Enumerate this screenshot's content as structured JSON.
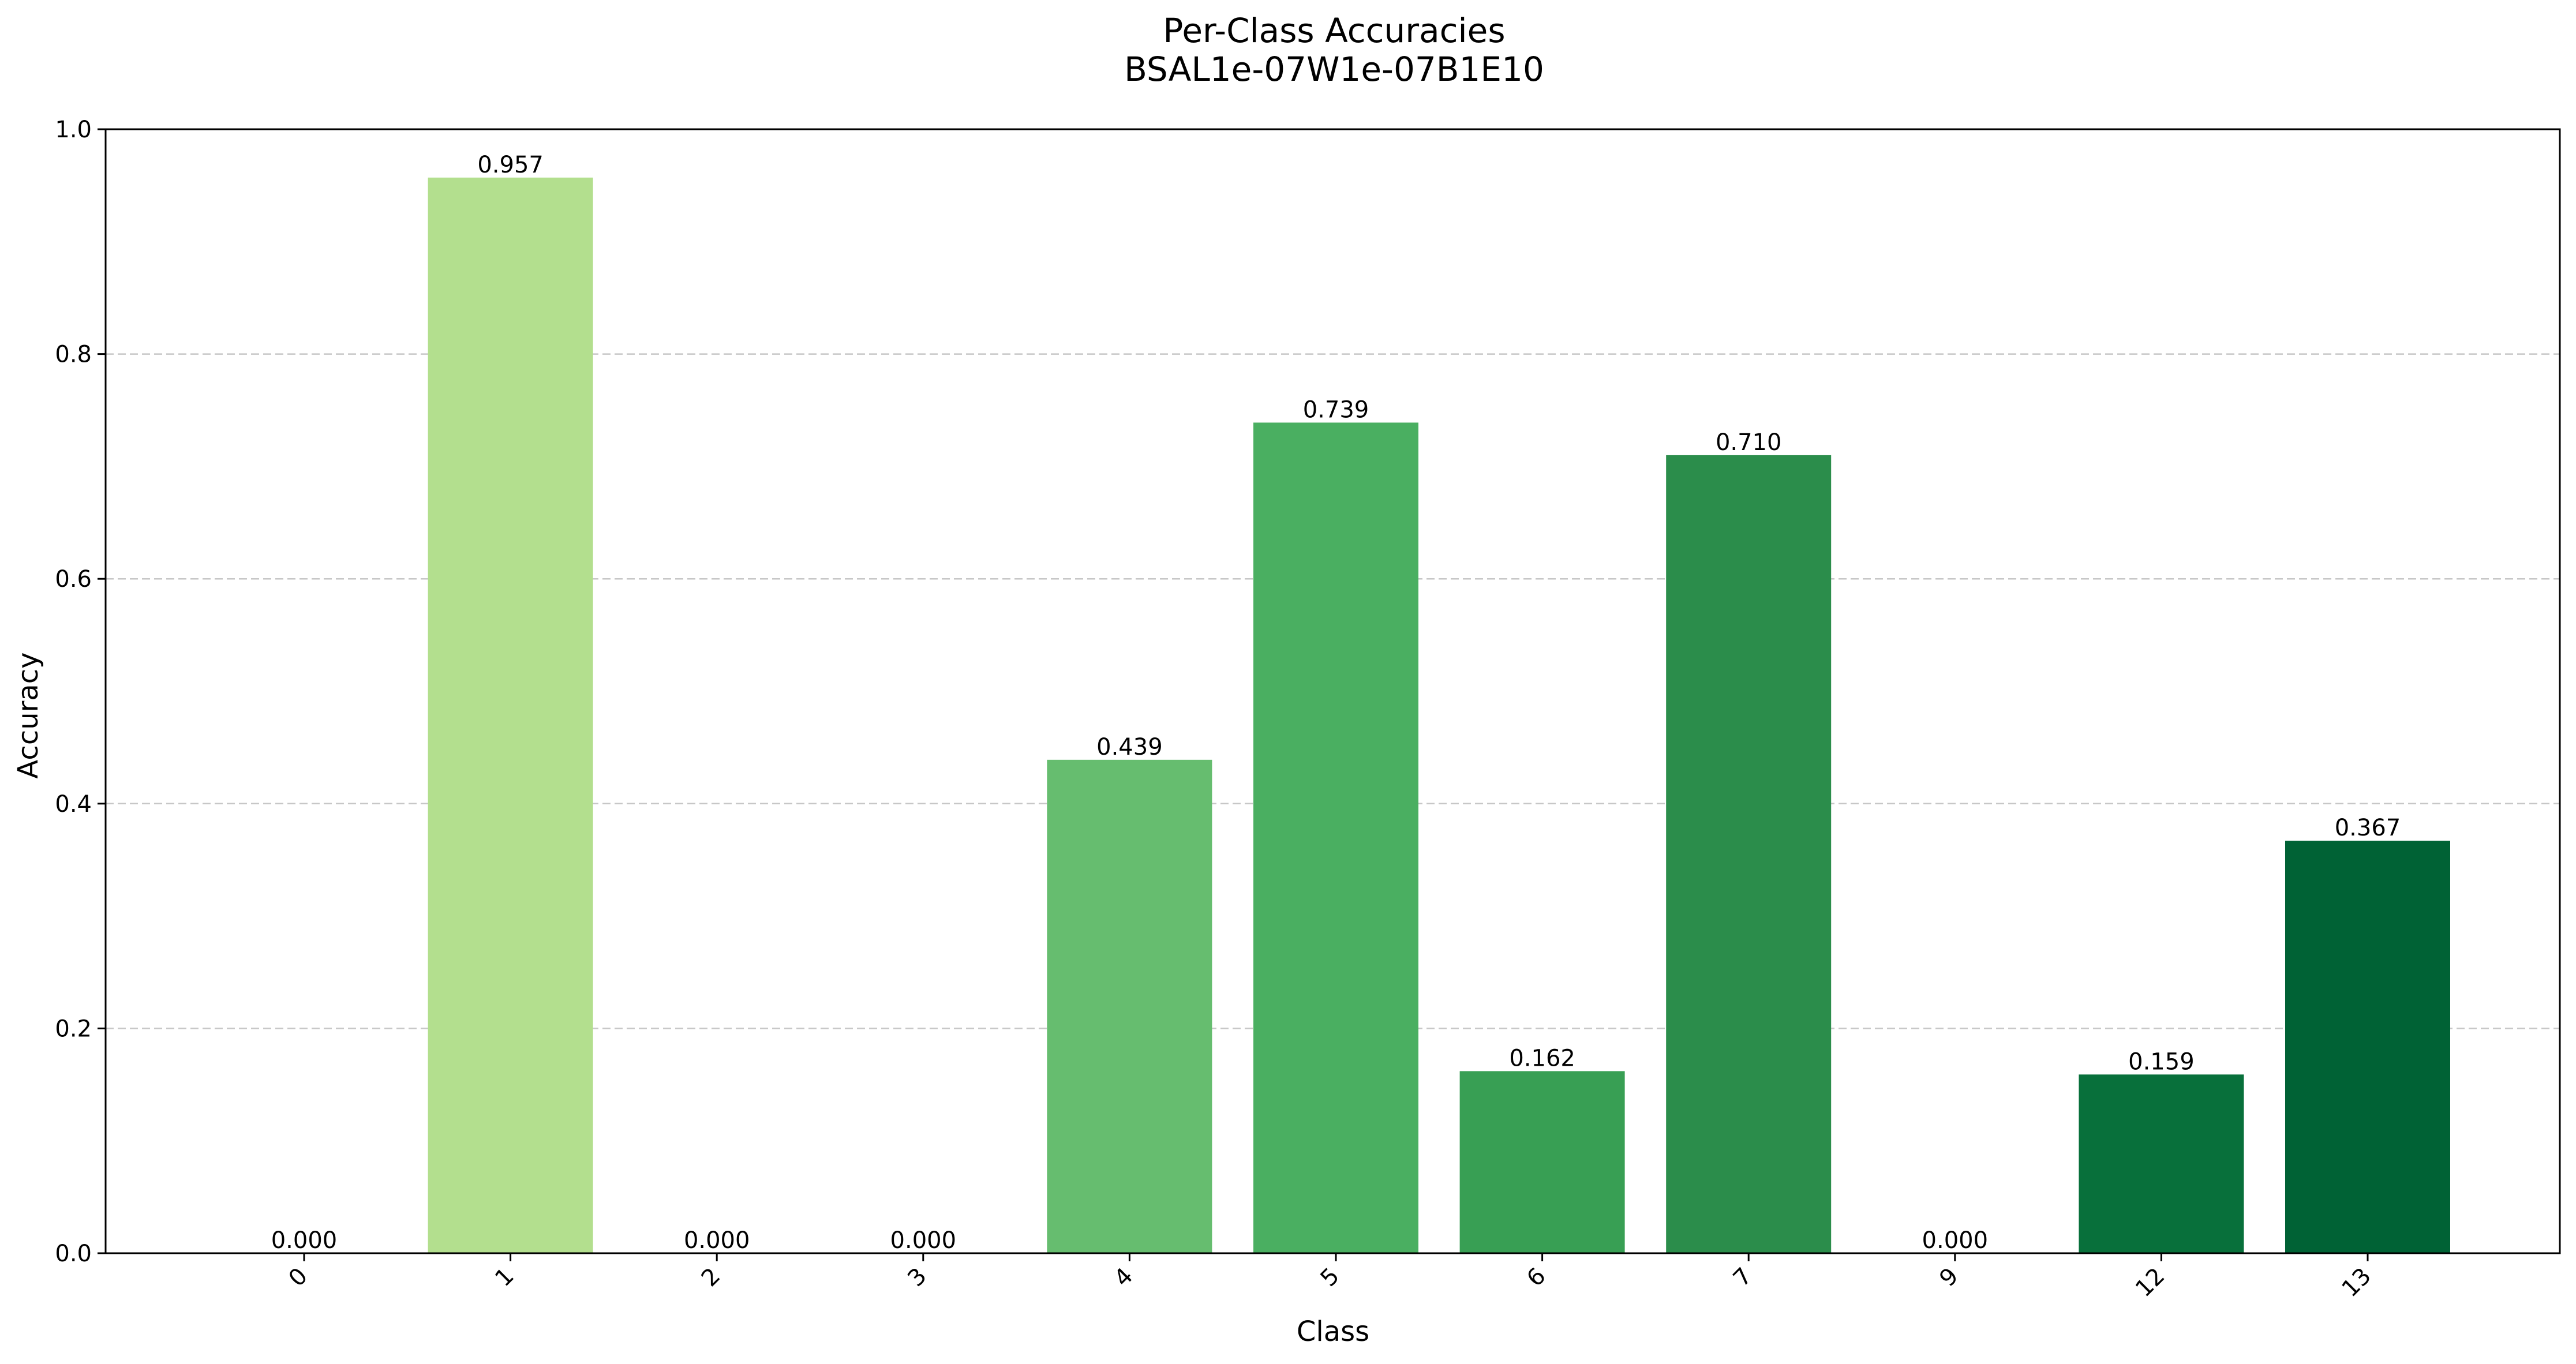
{
  "chart_data": {
    "type": "bar",
    "title": "Per-Class Accuracies",
    "subtitle": "BSAL1e-07W1e-07B1E10",
    "xlabel": "Class",
    "ylabel": "Accuracy",
    "categories": [
      "0",
      "1",
      "2",
      "3",
      "4",
      "5",
      "6",
      "7",
      "9",
      "12",
      "13"
    ],
    "values": [
      0.0,
      0.957,
      0.0,
      0.0,
      0.439,
      0.739,
      0.162,
      0.71,
      0.0,
      0.159,
      0.367
    ],
    "data_labels": [
      "0.000",
      "0.957",
      "0.000",
      "0.000",
      "0.439",
      "0.739",
      "0.162",
      "0.710",
      "0.000",
      "0.159",
      "0.367"
    ],
    "colors": [
      "#f7fcb9",
      "#b3df8e",
      "#9ad17f",
      "#80c46f",
      "#66bd6f",
      "#4aaf61",
      "#389f54",
      "#2b8d4b",
      "#187b3f",
      "#08703b",
      "#006235"
    ],
    "ylim": [
      0,
      1.0
    ],
    "yticks": [
      0.0,
      0.2,
      0.4,
      0.6,
      0.8,
      1.0
    ],
    "ytick_labels": [
      "0.0",
      "0.2",
      "0.4",
      "0.6",
      "0.8",
      "1.0"
    ],
    "grid": "y-dashed"
  }
}
